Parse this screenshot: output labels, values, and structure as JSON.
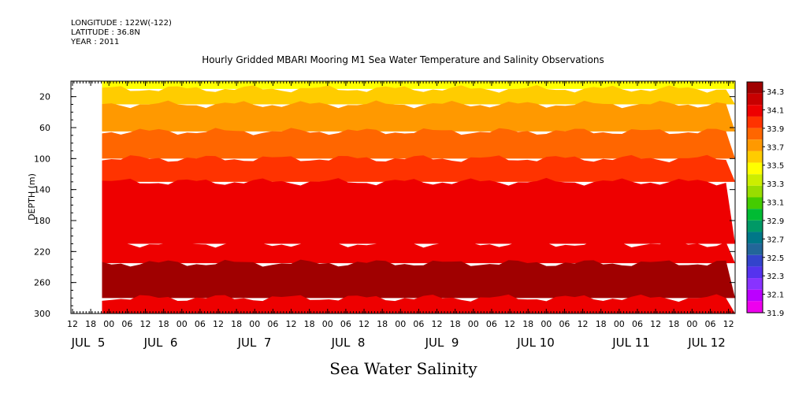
{
  "header": {
    "longitude": "LONGITUDE : 122W(-122)",
    "latitude": "LATITUDE : 36.8N",
    "year": "YEAR : 2011"
  },
  "chart_data": {
    "type": "heatmap",
    "title": "Hourly Gridded MBARI Mooring M1 Sea Water Temperature and Salinity Observations",
    "xlabel": "Sea Water Salinity",
    "ylabel": "DEPTH (m)",
    "ylim": [
      300,
      0
    ],
    "y_ticks": [
      20,
      60,
      100,
      140,
      180,
      220,
      260,
      300
    ],
    "x_hour_ticks": [
      "12",
      "18",
      "00",
      "06",
      "12",
      "18",
      "00",
      "06",
      "12",
      "18",
      "00",
      "06",
      "12",
      "18",
      "00",
      "06",
      "12",
      "18",
      "00",
      "06",
      "12",
      "18",
      "00",
      "06",
      "12",
      "18",
      "00",
      "06",
      "12",
      "18",
      "00",
      "06",
      "12",
      "18",
      "00",
      "06",
      "12"
    ],
    "x_day_ticks": [
      {
        "label": "JUL  5",
        "hour": 24
      },
      {
        "label": "JUL  6",
        "hour": 48
      },
      {
        "label": "JUL  7",
        "hour": 96
      },
      {
        "label": "JUL  8",
        "hour": 144
      },
      {
        "label": "JUL  9",
        "hour": 192
      },
      {
        "label": "JUL 10",
        "hour": 240
      },
      {
        "label": "JUL 11",
        "hour": 288
      },
      {
        "label": "JUL 12",
        "hour": 327
      }
    ],
    "x_range_hours": [
      0,
      342
    ],
    "data_start_hour": 16,
    "colorbar": {
      "labels": [
        "34.3",
        "34.1",
        "33.9",
        "33.7",
        "33.5",
        "33.3",
        "33.1",
        "32.9",
        "32.7",
        "32.5",
        "32.3",
        "32.1",
        "31.9"
      ],
      "colors": [
        "#a00000",
        "#c80000",
        "#ee0000",
        "#ff3300",
        "#ff6600",
        "#ff9900",
        "#ffcc00",
        "#ffff00",
        "#ccee00",
        "#99dd00",
        "#44cc00",
        "#00bb33",
        "#009966",
        "#007788",
        "#226699",
        "#3344cc",
        "#5533ee",
        "#8833ff",
        "#bb00ff",
        "#ee00ee"
      ]
    },
    "depth_layers": [
      {
        "from": 0,
        "to": 10,
        "salinity": 33.7
      },
      {
        "from": 10,
        "to": 30,
        "salinity": 33.8
      },
      {
        "from": 30,
        "to": 65,
        "salinity": 33.9
      },
      {
        "from": 65,
        "to": 100,
        "salinity": 34.0
      },
      {
        "from": 100,
        "to": 130,
        "salinity": 34.1
      },
      {
        "from": 130,
        "to": 210,
        "salinity": 34.2
      },
      {
        "from": 210,
        "to": 235,
        "salinity": 34.2
      },
      {
        "from": 235,
        "to": 280,
        "salinity": 34.35
      },
      {
        "from": 280,
        "to": 300,
        "salinity": 34.2
      }
    ]
  }
}
